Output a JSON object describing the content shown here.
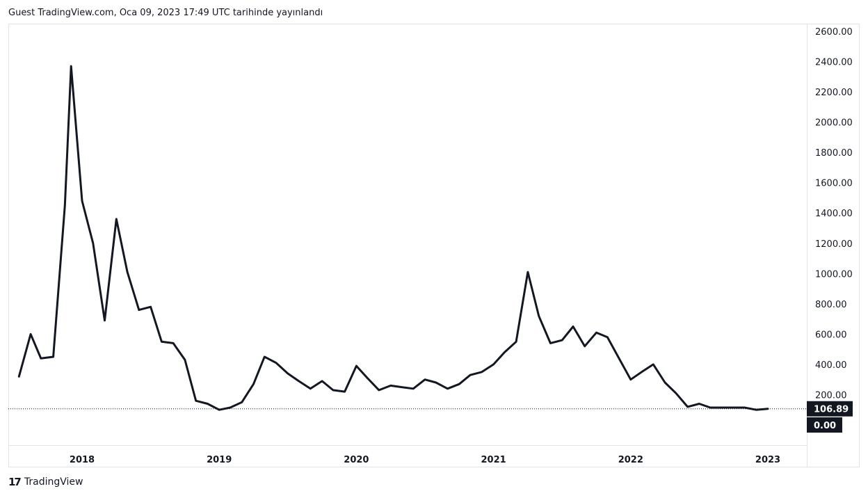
{
  "header": {
    "published_text": "Guest TradingView.com, Oca 09, 2023 17:49 UTC tarihinde yayınlandı"
  },
  "footer": {
    "logo_text": "TradingView",
    "logo_mark": "17"
  },
  "colors": {
    "line": "#131722",
    "badge_bg": "#131722",
    "border": "#e0e3eb"
  },
  "chart_data": {
    "type": "line",
    "x_axis": {
      "ticks": [
        "2018",
        "2019",
        "2020",
        "2021",
        "2022",
        "2023"
      ],
      "tick_positions_year": [
        2018,
        2019,
        2020,
        2021,
        2022,
        2023
      ],
      "range": [
        2017.5,
        2023.2
      ]
    },
    "y_axis": {
      "ticks": [
        "0.00",
        "200.00",
        "400.00",
        "600.00",
        "800.00",
        "1000.00",
        "1200.00",
        "1400.00",
        "1600.00",
        "1800.00",
        "2000.00",
        "2200.00",
        "2400.00",
        "2600.00"
      ],
      "range": [
        -220,
        2650
      ]
    },
    "last_value": 106.89,
    "last_value_label": "106.89",
    "zero_label": "0.00",
    "series": [
      {
        "x": [
          2017.54,
          2017.625,
          2017.7,
          2017.79,
          2017.875,
          2017.92,
          2018.0,
          2018.08,
          2018.165,
          2018.25,
          2018.33,
          2018.415,
          2018.5,
          2018.58,
          2018.665,
          2018.75,
          2018.83,
          2018.915,
          2019.0,
          2019.08,
          2019.165,
          2019.25,
          2019.33,
          2019.415,
          2019.5,
          2019.58,
          2019.665,
          2019.75,
          2019.83,
          2019.915,
          2020.0,
          2020.08,
          2020.165,
          2020.25,
          2020.33,
          2020.415,
          2020.5,
          2020.58,
          2020.665,
          2020.75,
          2020.83,
          2020.915,
          2021.0,
          2021.08,
          2021.165,
          2021.25,
          2021.33,
          2021.415,
          2021.5,
          2021.58,
          2021.665,
          2021.75,
          2021.83,
          2021.915,
          2022.0,
          2022.08,
          2022.165,
          2022.25,
          2022.33,
          2022.415,
          2022.5,
          2022.58,
          2022.665,
          2022.75,
          2022.83,
          2022.915,
          2023.0
        ],
        "y": [
          320,
          600,
          440,
          450,
          1450,
          2370,
          1480,
          1200,
          690,
          1360,
          1010,
          760,
          780,
          550,
          540,
          430,
          160,
          140,
          100,
          115,
          150,
          270,
          450,
          410,
          340,
          290,
          240,
          290,
          230,
          220,
          390,
          310,
          230,
          260,
          250,
          240,
          300,
          280,
          240,
          270,
          330,
          350,
          400,
          480,
          550,
          1010,
          720,
          540,
          560,
          650,
          520,
          610,
          580,
          440,
          300,
          350,
          400,
          280,
          210,
          120,
          140,
          115,
          115,
          115,
          115,
          100,
          106.89
        ]
      }
    ]
  }
}
